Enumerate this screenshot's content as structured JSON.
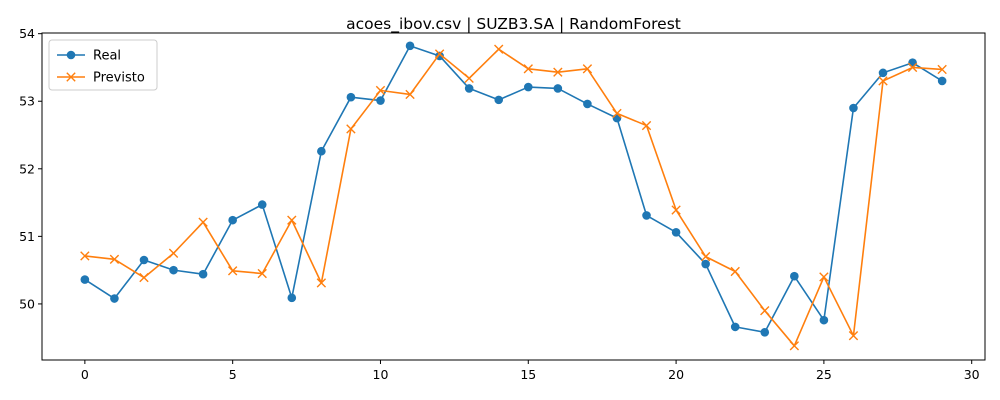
{
  "chart_data": {
    "type": "line",
    "title": "acoes_ibov.csv | SUZB3.SA | RandomForest",
    "xlabel": "",
    "ylabel": "",
    "xlim": [
      -1.45,
      30.45
    ],
    "ylim": [
      49.17,
      54.01
    ],
    "xticks": [
      0,
      5,
      10,
      15,
      20,
      25,
      30
    ],
    "yticks": [
      50,
      51,
      52,
      53,
      54
    ],
    "grid": false,
    "legend_position": "top-left",
    "x": [
      0,
      1,
      2,
      3,
      4,
      5,
      6,
      7,
      8,
      9,
      10,
      11,
      12,
      13,
      14,
      15,
      16,
      17,
      18,
      19,
      20,
      21,
      22,
      23,
      24,
      25,
      26,
      27,
      28,
      29
    ],
    "series": [
      {
        "name": "Real",
        "color": "#1f77b4",
        "marker": "circle",
        "values": [
          50.36,
          50.08,
          50.65,
          50.5,
          50.44,
          51.24,
          51.47,
          50.09,
          52.26,
          53.06,
          53.01,
          53.82,
          53.67,
          53.19,
          53.02,
          53.21,
          53.19,
          52.96,
          52.75,
          51.31,
          51.06,
          50.59,
          49.66,
          49.58,
          50.41,
          49.76,
          52.9,
          53.42,
          53.57,
          53.3
        ]
      },
      {
        "name": "Previsto",
        "color": "#ff7f0e",
        "marker": "x",
        "values": [
          50.71,
          50.66,
          50.39,
          50.75,
          51.21,
          50.49,
          50.45,
          51.24,
          50.31,
          52.59,
          53.16,
          53.1,
          53.7,
          53.34,
          53.77,
          53.48,
          53.43,
          53.48,
          52.82,
          52.64,
          51.39,
          50.7,
          50.48,
          49.9,
          49.38,
          50.4,
          49.53,
          53.3,
          53.5,
          53.47
        ]
      }
    ]
  }
}
